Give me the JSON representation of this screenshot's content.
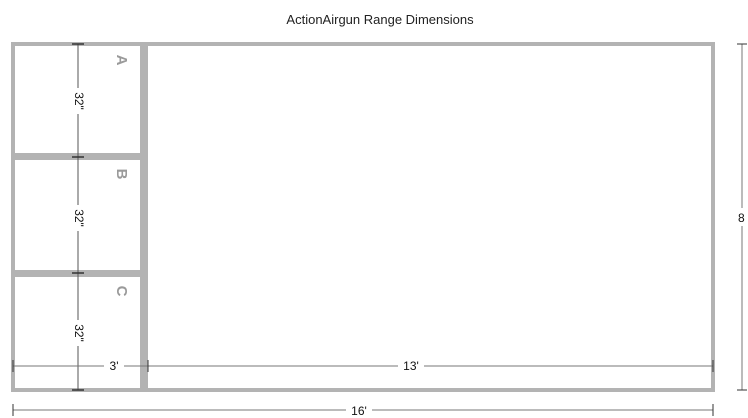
{
  "title": "ActionAirgun Range Dimensions",
  "bays": [
    {
      "letter": "A",
      "depth_label": "32\""
    },
    {
      "letter": "B",
      "depth_label": "32\""
    },
    {
      "letter": "C",
      "depth_label": "32\""
    }
  ],
  "dimensions": {
    "bay_width": "3'",
    "range_length": "13'",
    "total_length": "16'",
    "total_height": "8"
  },
  "colors": {
    "wall": "#b3b3b3",
    "line": "#555555",
    "background": "#ffffff"
  }
}
